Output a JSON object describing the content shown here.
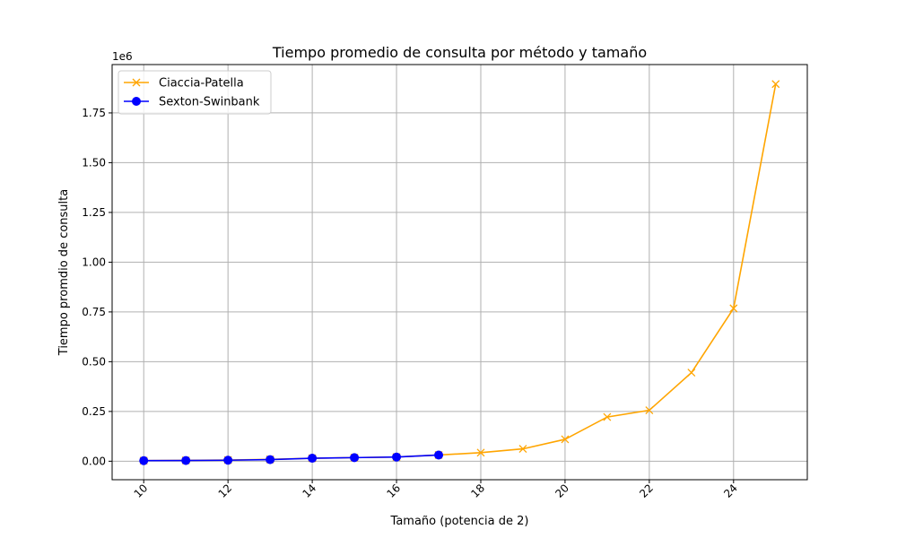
{
  "chart_data": {
    "type": "line",
    "title": "Tiempo promedio de consulta por método y tamaño",
    "xlabel": "Tamaño (potencia de 2)",
    "ylabel": "Tiempo promdio de consulta",
    "y_offset_label": "1e6",
    "xlim": [
      9.25,
      25.75
    ],
    "ylim": [
      -93000,
      1993000
    ],
    "x_ticks": [
      10,
      12,
      14,
      16,
      18,
      20,
      22,
      24
    ],
    "x_tick_labels": [
      "10",
      "12",
      "14",
      "16",
      "18",
      "20",
      "22",
      "24"
    ],
    "y_ticks": [
      0,
      250000,
      500000,
      750000,
      1000000,
      1250000,
      1500000,
      1750000
    ],
    "y_tick_labels": [
      "0.00",
      "0.25",
      "0.50",
      "0.75",
      "1.00",
      "1.25",
      "1.50",
      "1.75"
    ],
    "grid": true,
    "legend_position": "top-left",
    "series": [
      {
        "name": "Ciaccia-Patella",
        "color": "#ffa500",
        "marker": "x",
        "x": [
          10,
          11,
          12,
          13,
          14,
          15,
          16,
          17,
          18,
          19,
          20,
          21,
          22,
          23,
          24,
          25
        ],
        "values": [
          3000,
          4000,
          6000,
          9000,
          15000,
          18000,
          21000,
          31000,
          43000,
          62000,
          110000,
          222000,
          256000,
          445000,
          768000,
          1895000
        ]
      },
      {
        "name": "Sexton-Swinbank",
        "color": "#0000ff",
        "marker": "o",
        "x": [
          10,
          11,
          12,
          13,
          14,
          15,
          16,
          17
        ],
        "values": [
          3000,
          3500,
          5000,
          8000,
          15000,
          18000,
          21000,
          31000
        ]
      }
    ]
  }
}
